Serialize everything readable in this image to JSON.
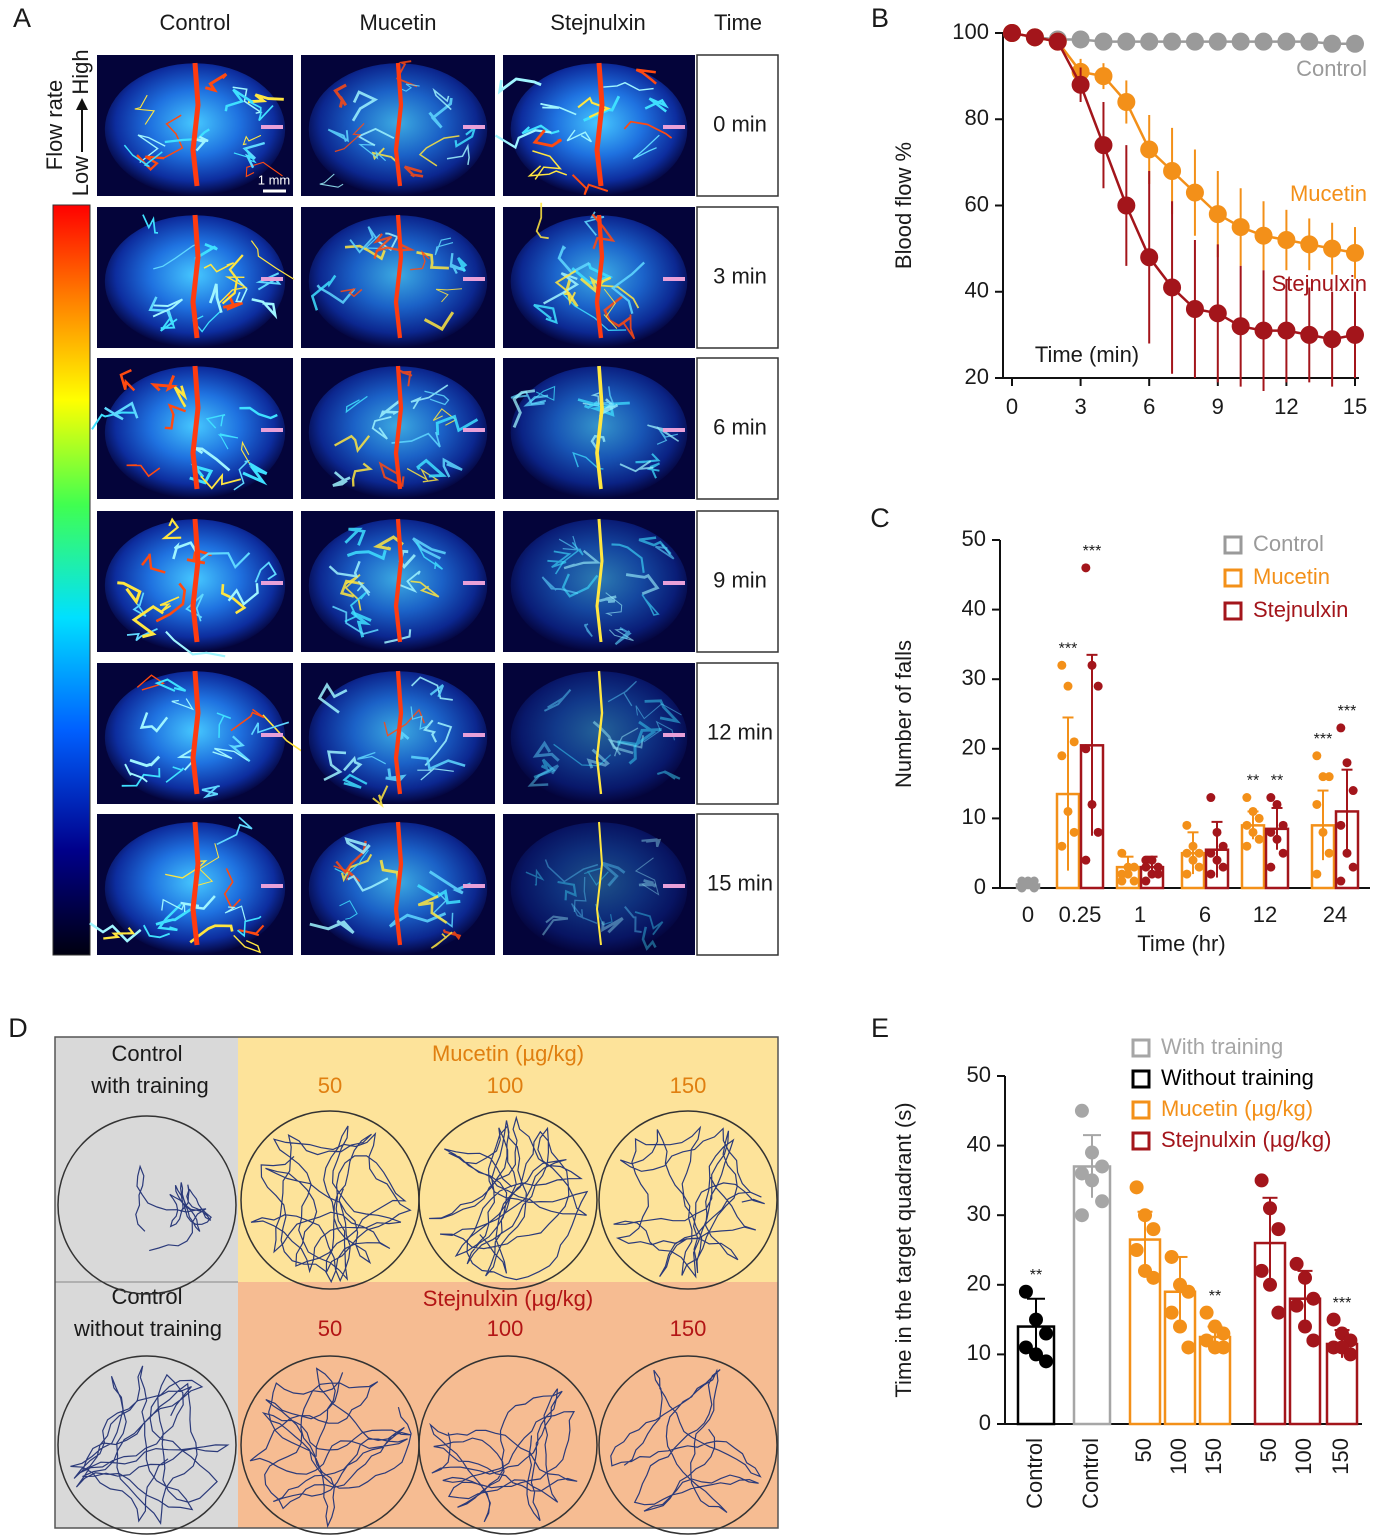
{
  "panel_a": {
    "label": "A",
    "columns": [
      "Control",
      "Mucetin",
      "Stejnulxin",
      "Time"
    ],
    "rows": [
      "0 min",
      "3 min",
      "6 min",
      "9 min",
      "12 min",
      "15 min"
    ],
    "colorbar_title": "Flow rate",
    "colorbar_low": "Low",
    "colorbar_high": "High",
    "scale_bar": "1 mm"
  },
  "chart_data": [
    {
      "label": "B",
      "type": "line",
      "ylabel": "Blood flow %",
      "xlabel": "Time (min)",
      "x": [
        0,
        1,
        2,
        3,
        4,
        5,
        6,
        7,
        8,
        9,
        10,
        11,
        12,
        13,
        14,
        15
      ],
      "xlim": [
        0,
        15
      ],
      "xticks": [
        0,
        3,
        6,
        9,
        12,
        15
      ],
      "ylim": [
        20,
        100
      ],
      "yticks": [
        20,
        40,
        60,
        80,
        100
      ],
      "series": [
        {
          "name": "Control",
          "color": "#9a9a9a",
          "values": [
            100,
            99,
            98.5,
            98.5,
            98,
            98,
            98,
            98,
            98,
            98,
            98,
            98,
            98,
            98,
            97.5,
            97.5
          ]
        },
        {
          "name": "Mucetin",
          "color": "#f39019",
          "values": [
            100,
            99,
            98,
            91,
            90,
            84,
            73,
            68,
            63,
            58,
            55,
            53,
            52,
            51,
            50,
            49
          ],
          "errors": [
            0,
            0.5,
            1,
            3,
            3,
            5,
            8,
            10,
            10,
            10,
            9,
            8,
            7,
            6,
            6,
            6
          ]
        },
        {
          "name": "Stejnulxin",
          "color": "#a3151b",
          "values": [
            100,
            99,
            98,
            88,
            74,
            60,
            48,
            41,
            36,
            35,
            32,
            31,
            31,
            30,
            29,
            30
          ],
          "errors": [
            0,
            0.5,
            1,
            4,
            10,
            14,
            20,
            20,
            16,
            16,
            14,
            14,
            12,
            11,
            11,
            10
          ]
        }
      ]
    },
    {
      "label": "C",
      "type": "bar",
      "ylabel": "Number of falls",
      "xlabel": "Time (hr)",
      "legend": "upper right",
      "categories": [
        "0",
        "0.25",
        "1",
        "6",
        "12",
        "24"
      ],
      "ylim": [
        0,
        50
      ],
      "yticks": [
        0,
        10,
        20,
        30,
        40,
        50
      ],
      "series": [
        {
          "name": "Control",
          "color": "#9a9a9a",
          "values": [
            0.5,
            null,
            null,
            null,
            null,
            null
          ],
          "errors": [
            0.5,
            null,
            null,
            null,
            null,
            null
          ],
          "points": [
            [
              1,
              1,
              1,
              0.5,
              0.5,
              0,
              0
            ],
            null,
            null,
            null,
            null,
            null
          ]
        },
        {
          "name": "Mucetin",
          "color": "#f39019",
          "values": [
            null,
            13.5,
            3,
            5,
            9,
            9
          ],
          "errors": [
            null,
            11,
            1.5,
            3,
            2,
            5
          ],
          "points": [
            null,
            [
              32,
              29,
              21,
              19,
              11,
              8,
              6
            ],
            [
              5,
              3,
              3,
              2,
              2,
              1,
              1
            ],
            [
              9,
              6,
              5,
              5,
              4,
              3,
              2
            ],
            [
              13,
              11,
              10,
              9,
              8,
              7,
              6
            ],
            [
              19,
              16,
              16,
              12,
              8,
              5,
              2
            ]
          ],
          "significance": [
            null,
            "***",
            null,
            null,
            "**",
            "***"
          ]
        },
        {
          "name": "Stejnulxin",
          "color": "#a3151b",
          "values": [
            null,
            20.5,
            3,
            5.5,
            8.5,
            11
          ],
          "errors": [
            null,
            13,
            1.5,
            4,
            3,
            6
          ],
          "points": [
            null,
            [
              46,
              32,
              29,
              20,
              12,
              8,
              4
            ],
            [
              4,
              4,
              3,
              3,
              2,
              2,
              1
            ],
            [
              13,
              8,
              6,
              5,
              4,
              3,
              2
            ],
            [
              13,
              12,
              9,
              8,
              7,
              5,
              3
            ],
            [
              23,
              18,
              14,
              9,
              5,
              3,
              1
            ]
          ],
          "significance": [
            null,
            "***",
            null,
            null,
            "**",
            "***"
          ]
        }
      ]
    },
    {
      "label": "E",
      "type": "bar",
      "ylabel": "Time in the target quadrant (s)",
      "legend": "upper right",
      "categories": [
        "Control",
        "Control",
        "50",
        "100",
        "150",
        "50",
        "100",
        "150"
      ],
      "ylim": [
        0,
        50
      ],
      "yticks": [
        0,
        10,
        20,
        30,
        40,
        50
      ],
      "series": [
        {
          "name": "With training",
          "color": "#a6a6a6",
          "values": [
            null,
            37,
            null,
            null,
            null,
            null,
            null,
            null
          ],
          "errors": [
            null,
            4.5,
            null,
            null,
            null,
            null,
            null,
            null
          ],
          "points": [
            null,
            [
              45,
              39,
              37,
              36,
              35,
              32,
              30
            ],
            null,
            null,
            null,
            null,
            null,
            null
          ]
        },
        {
          "name": "Without training",
          "color": "#000000",
          "values": [
            14,
            null,
            null,
            null,
            null,
            null,
            null,
            null
          ],
          "errors": [
            4,
            null,
            null,
            null,
            null,
            null,
            null,
            null
          ],
          "points": [
            [
              19,
              15,
              13,
              11,
              10,
              9
            ],
            null,
            null,
            null,
            null,
            null,
            null,
            null
          ],
          "significance": [
            "**",
            null,
            null,
            null,
            null,
            null,
            null,
            null
          ]
        },
        {
          "name": "Mucetin (µg/kg)",
          "color": "#f39019",
          "values": [
            null,
            null,
            26.5,
            19,
            12.5,
            null,
            null,
            null
          ],
          "errors": [
            null,
            null,
            4,
            5,
            1.5,
            null,
            null,
            null
          ],
          "points": [
            null,
            null,
            [
              34,
              30,
              28,
              25,
              22,
              21
            ],
            [
              24,
              20,
              19,
              16,
              14,
              11
            ],
            [
              16,
              14,
              13,
              12,
              11,
              11
            ],
            null,
            null,
            null
          ],
          "significance": [
            null,
            null,
            null,
            null,
            "**",
            null,
            null,
            null
          ]
        },
        {
          "name": "Stejnulxin (µg/kg)",
          "color": "#a3151b",
          "values": [
            null,
            null,
            null,
            null,
            null,
            26,
            18,
            11.5
          ],
          "errors": [
            null,
            null,
            null,
            null,
            null,
            6.5,
            4,
            2
          ],
          "points": [
            null,
            null,
            null,
            null,
            null,
            [
              35,
              31,
              28,
              22,
              20,
              16
            ],
            [
              23,
              21,
              18,
              17,
              14,
              12
            ],
            [
              15,
              13,
              12,
              11,
              11,
              10
            ]
          ],
          "significance": [
            null,
            null,
            null,
            null,
            null,
            null,
            null,
            "***"
          ]
        }
      ]
    }
  ],
  "panel_d": {
    "label": "D",
    "top_left": [
      "Control",
      "with training"
    ],
    "top_group": "Mucetin (µg/kg)",
    "top_doses": [
      "50",
      "100",
      "150"
    ],
    "bottom_left": [
      "Control",
      "without training"
    ],
    "bottom_group": "Stejnulxin (µg/kg)",
    "bottom_doses": [
      "50",
      "100",
      "150"
    ]
  }
}
